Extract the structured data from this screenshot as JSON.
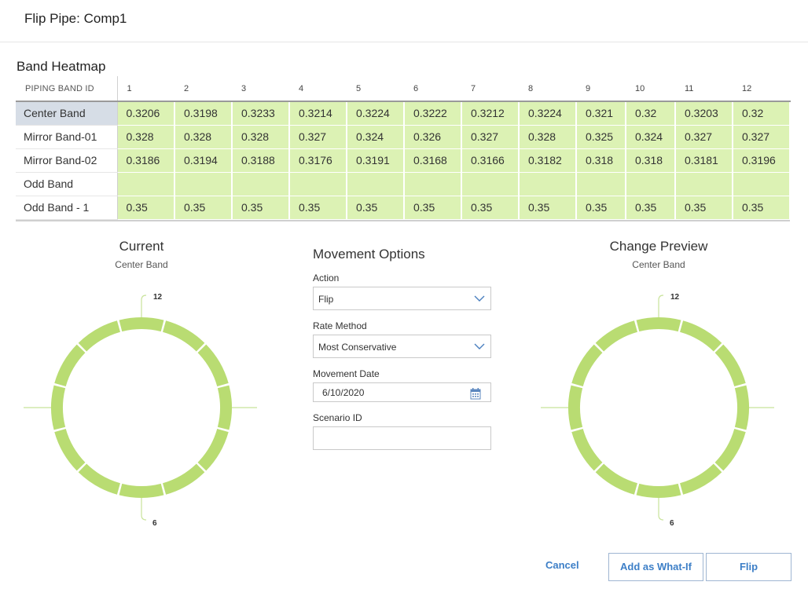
{
  "dialog": {
    "title": "Flip Pipe: Comp1"
  },
  "heatmap": {
    "title": "Band Heatmap",
    "id_header": "PIPING BAND ID",
    "columns": [
      "1",
      "2",
      "3",
      "4",
      "5",
      "6",
      "7",
      "8",
      "9",
      "10",
      "11",
      "12"
    ],
    "rows": [
      {
        "label": "Center Band",
        "selected": true,
        "values": [
          "0.3206",
          "0.3198",
          "0.3233",
          "0.3214",
          "0.3224",
          "0.3222",
          "0.3212",
          "0.3224",
          "0.321",
          "0.32",
          "0.3203",
          "0.32"
        ]
      },
      {
        "label": "Mirror Band-01",
        "selected": false,
        "values": [
          "0.328",
          "0.328",
          "0.328",
          "0.327",
          "0.324",
          "0.326",
          "0.327",
          "0.328",
          "0.325",
          "0.324",
          "0.327",
          "0.327"
        ]
      },
      {
        "label": "Mirror Band-02",
        "selected": false,
        "values": [
          "0.3186",
          "0.3194",
          "0.3188",
          "0.3176",
          "0.3191",
          "0.3168",
          "0.3166",
          "0.3182",
          "0.318",
          "0.318",
          "0.3181",
          "0.3196"
        ]
      },
      {
        "label": "Odd Band",
        "selected": false,
        "values": [
          "",
          "",
          "",
          "",
          "",
          "",
          "",
          "",
          "",
          "",
          "",
          ""
        ]
      },
      {
        "label": "Odd Band - 1",
        "selected": false,
        "values": [
          "0.35",
          "0.35",
          "0.35",
          "0.35",
          "0.35",
          "0.35",
          "0.35",
          "0.35",
          "0.35",
          "0.35",
          "0.35",
          "0.35"
        ]
      }
    ],
    "cell_color": "#dcf2b4"
  },
  "current": {
    "title": "Current",
    "subtitle": "Center Band",
    "top_label": "12",
    "bottom_label": "6",
    "segments": 12,
    "ring_color": "#b9dc72"
  },
  "preview": {
    "title": "Change Preview",
    "subtitle": "Center Band",
    "top_label": "12",
    "bottom_label": "6",
    "segments": 12,
    "ring_color": "#b9dc72"
  },
  "movement": {
    "title": "Movement Options",
    "action_label": "Action",
    "action_value": "Flip",
    "rate_label": "Rate Method",
    "rate_value": "Most Conservative",
    "date_label": "Movement Date",
    "date_value": "6/10/2020",
    "scenario_label": "Scenario ID",
    "scenario_value": ""
  },
  "footer": {
    "cancel_label": "Cancel",
    "whatif_label": "Add as What-If",
    "flip_label": "Flip"
  },
  "icons": {
    "chevron": "chevron-down-icon",
    "calendar": "calendar-icon"
  }
}
